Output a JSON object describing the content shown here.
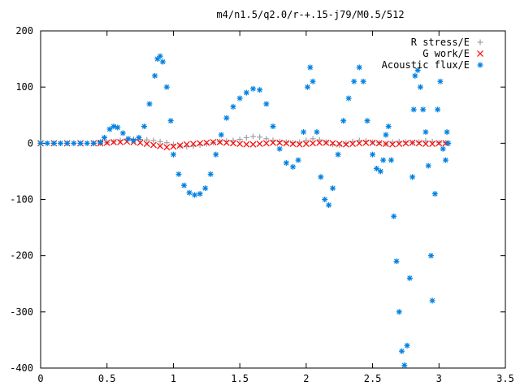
{
  "chart_data": {
    "type": "scatter",
    "title": "m4/n1.5/q2.0/r-+.15-j79/M0.5/512",
    "xlabel": "",
    "ylabel": "",
    "xlim": [
      0,
      3.5
    ],
    "ylim": [
      -400,
      200
    ],
    "xticks": [
      0,
      0.5,
      1,
      1.5,
      2,
      2.5,
      3,
      3.5
    ],
    "xtick_labels": [
      "0",
      "0.5",
      "1",
      "1.5",
      "2",
      "2.5",
      "3",
      "3.5"
    ],
    "yticks": [
      200,
      100,
      0,
      -100,
      -200,
      -300,
      -400
    ],
    "ytick_labels": [
      "200",
      "100",
      "0",
      "-100",
      "-200",
      "-300",
      "-400"
    ],
    "grid": false,
    "legend_position": "top-right",
    "series": [
      {
        "name": "R stress/E",
        "marker": "+",
        "color": "#a0a0a0",
        "points": [
          [
            0,
            0
          ],
          [
            0.1,
            0
          ],
          [
            0.2,
            0
          ],
          [
            0.3,
            0
          ],
          [
            0.4,
            0
          ],
          [
            0.45,
            0
          ],
          [
            0.5,
            1
          ],
          [
            0.55,
            3
          ],
          [
            0.6,
            5
          ],
          [
            0.65,
            6
          ],
          [
            0.7,
            7
          ],
          [
            0.75,
            7
          ],
          [
            0.8,
            6
          ],
          [
            0.85,
            5
          ],
          [
            0.9,
            3
          ],
          [
            0.95,
            1
          ],
          [
            1.0,
            -2
          ],
          [
            1.05,
            -5
          ],
          [
            1.1,
            -6
          ],
          [
            1.15,
            -5
          ],
          [
            1.2,
            -3
          ],
          [
            1.25,
            -1
          ],
          [
            1.3,
            1
          ],
          [
            1.35,
            3
          ],
          [
            1.4,
            4
          ],
          [
            1.45,
            5
          ],
          [
            1.5,
            7
          ],
          [
            1.55,
            10
          ],
          [
            1.6,
            12
          ],
          [
            1.65,
            11
          ],
          [
            1.7,
            8
          ],
          [
            1.75,
            5
          ],
          [
            1.8,
            3
          ],
          [
            1.85,
            2
          ],
          [
            1.9,
            1
          ],
          [
            1.95,
            2
          ],
          [
            2.0,
            5
          ],
          [
            2.05,
            8
          ],
          [
            2.1,
            6
          ],
          [
            2.15,
            2
          ],
          [
            2.2,
            -2
          ],
          [
            2.25,
            -3
          ],
          [
            2.3,
            0
          ],
          [
            2.35,
            3
          ],
          [
            2.4,
            5
          ],
          [
            2.45,
            4
          ],
          [
            2.5,
            2
          ],
          [
            2.55,
            1
          ],
          [
            2.6,
            -1
          ],
          [
            2.65,
            2
          ],
          [
            2.7,
            3
          ],
          [
            2.75,
            2
          ],
          [
            2.8,
            1
          ],
          [
            2.85,
            2
          ],
          [
            2.9,
            4
          ],
          [
            2.95,
            3
          ],
          [
            3.0,
            1
          ],
          [
            3.05,
            1
          ]
        ]
      },
      {
        "name": "G work/E",
        "marker": "x",
        "color": "#ff0000",
        "points": [
          [
            0,
            0
          ],
          [
            0.1,
            0
          ],
          [
            0.2,
            0
          ],
          [
            0.3,
            0
          ],
          [
            0.4,
            0
          ],
          [
            0.45,
            0
          ],
          [
            0.5,
            1
          ],
          [
            0.55,
            2
          ],
          [
            0.6,
            2
          ],
          [
            0.65,
            3
          ],
          [
            0.7,
            2
          ],
          [
            0.75,
            1
          ],
          [
            0.8,
            -1
          ],
          [
            0.85,
            -3
          ],
          [
            0.9,
            -5
          ],
          [
            0.95,
            -7
          ],
          [
            1.0,
            -6
          ],
          [
            1.05,
            -4
          ],
          [
            1.1,
            -2
          ],
          [
            1.15,
            -1
          ],
          [
            1.2,
            0
          ],
          [
            1.25,
            1
          ],
          [
            1.3,
            2
          ],
          [
            1.35,
            2
          ],
          [
            1.4,
            1
          ],
          [
            1.45,
            0
          ],
          [
            1.5,
            -1
          ],
          [
            1.55,
            -2
          ],
          [
            1.6,
            -2
          ],
          [
            1.65,
            -1
          ],
          [
            1.7,
            0
          ],
          [
            1.75,
            1
          ],
          [
            1.8,
            1
          ],
          [
            1.85,
            0
          ],
          [
            1.9,
            -1
          ],
          [
            1.95,
            -2
          ],
          [
            2.0,
            -1
          ],
          [
            2.05,
            0
          ],
          [
            2.1,
            1
          ],
          [
            2.15,
            1
          ],
          [
            2.2,
            0
          ],
          [
            2.25,
            -1
          ],
          [
            2.3,
            -2
          ],
          [
            2.35,
            -1
          ],
          [
            2.4,
            0
          ],
          [
            2.45,
            1
          ],
          [
            2.5,
            1
          ],
          [
            2.55,
            0
          ],
          [
            2.6,
            -1
          ],
          [
            2.65,
            -2
          ],
          [
            2.7,
            -1
          ],
          [
            2.75,
            0
          ],
          [
            2.8,
            1
          ],
          [
            2.85,
            0
          ],
          [
            2.9,
            -1
          ],
          [
            2.95,
            -1
          ],
          [
            3.0,
            0
          ],
          [
            3.05,
            0
          ]
        ]
      },
      {
        "name": "Acoustic flux/E",
        "marker": "*",
        "color": "#0080e0",
        "points": [
          [
            0,
            0
          ],
          [
            0.05,
            0
          ],
          [
            0.1,
            0
          ],
          [
            0.15,
            0
          ],
          [
            0.2,
            0
          ],
          [
            0.25,
            0
          ],
          [
            0.3,
            0
          ],
          [
            0.35,
            0
          ],
          [
            0.4,
            0
          ],
          [
            0.45,
            2
          ],
          [
            0.48,
            10
          ],
          [
            0.52,
            25
          ],
          [
            0.55,
            30
          ],
          [
            0.58,
            28
          ],
          [
            0.62,
            18
          ],
          [
            0.66,
            8
          ],
          [
            0.7,
            5
          ],
          [
            0.74,
            10
          ],
          [
            0.78,
            30
          ],
          [
            0.82,
            70
          ],
          [
            0.86,
            120
          ],
          [
            0.88,
            150
          ],
          [
            0.9,
            155
          ],
          [
            0.92,
            145
          ],
          [
            0.95,
            100
          ],
          [
            0.98,
            40
          ],
          [
            1.0,
            -20
          ],
          [
            1.04,
            -55
          ],
          [
            1.08,
            -75
          ],
          [
            1.12,
            -88
          ],
          [
            1.16,
            -92
          ],
          [
            1.2,
            -90
          ],
          [
            1.24,
            -80
          ],
          [
            1.28,
            -55
          ],
          [
            1.32,
            -20
          ],
          [
            1.36,
            15
          ],
          [
            1.4,
            45
          ],
          [
            1.45,
            65
          ],
          [
            1.5,
            80
          ],
          [
            1.55,
            90
          ],
          [
            1.6,
            97
          ],
          [
            1.65,
            95
          ],
          [
            1.7,
            70
          ],
          [
            1.75,
            30
          ],
          [
            1.8,
            -10
          ],
          [
            1.85,
            -35
          ],
          [
            1.9,
            -42
          ],
          [
            1.94,
            -30
          ],
          [
            1.98,
            20
          ],
          [
            2.01,
            100
          ],
          [
            2.03,
            135
          ],
          [
            2.05,
            110
          ],
          [
            2.08,
            20
          ],
          [
            2.11,
            -60
          ],
          [
            2.14,
            -100
          ],
          [
            2.17,
            -110
          ],
          [
            2.2,
            -80
          ],
          [
            2.24,
            -20
          ],
          [
            2.28,
            40
          ],
          [
            2.32,
            80
          ],
          [
            2.36,
            110
          ],
          [
            2.4,
            135
          ],
          [
            2.43,
            110
          ],
          [
            2.46,
            40
          ],
          [
            2.5,
            -20
          ],
          [
            2.53,
            -45
          ],
          [
            2.56,
            -50
          ],
          [
            2.58,
            -30
          ],
          [
            2.6,
            15
          ],
          [
            2.62,
            30
          ],
          [
            2.64,
            -30
          ],
          [
            2.66,
            -130
          ],
          [
            2.68,
            -210
          ],
          [
            2.7,
            -300
          ],
          [
            2.72,
            -370
          ],
          [
            2.74,
            -395
          ],
          [
            2.76,
            -360
          ],
          [
            2.78,
            -240
          ],
          [
            2.8,
            -60
          ],
          [
            2.81,
            60
          ],
          [
            2.82,
            120
          ],
          [
            2.84,
            130
          ],
          [
            2.86,
            100
          ],
          [
            2.88,
            60
          ],
          [
            2.9,
            20
          ],
          [
            2.92,
            -40
          ],
          [
            2.94,
            -200
          ],
          [
            2.95,
            -280
          ],
          [
            2.97,
            -90
          ],
          [
            2.99,
            60
          ],
          [
            3.01,
            110
          ],
          [
            3.03,
            -10
          ],
          [
            3.05,
            -30
          ],
          [
            3.06,
            20
          ],
          [
            3.07,
            0
          ]
        ]
      }
    ]
  }
}
